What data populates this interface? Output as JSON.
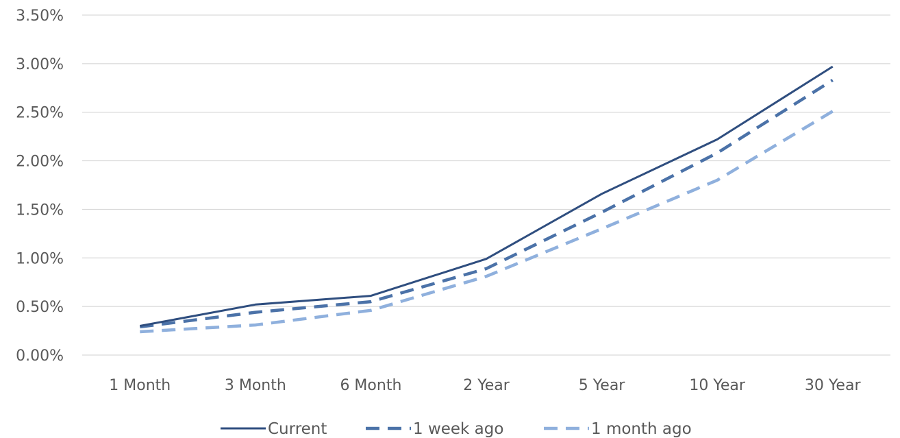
{
  "chart_data": {
    "type": "line",
    "categories": [
      "1 Month",
      "3 Month",
      "6 Month",
      "2 Year",
      "5 Year",
      "10 Year",
      "30 Year"
    ],
    "y_ticks": [
      "0.00%",
      "0.50%",
      "1.00%",
      "1.50%",
      "2.00%",
      "2.50%",
      "3.00%",
      "3.50%"
    ],
    "ylim": [
      0,
      3.5
    ],
    "y_unit": "percent",
    "grid": "horizontal",
    "legend_position": "bottom",
    "title": "",
    "xlabel": "",
    "ylabel": "",
    "series": [
      {
        "name": "Current",
        "color": "#2f4e7f",
        "style": "solid",
        "values": [
          0.3,
          0.52,
          0.61,
          0.99,
          1.66,
          2.22,
          2.97
        ]
      },
      {
        "name": "1 week ago",
        "color": "#4b72a8",
        "style": "dashed",
        "values": [
          0.29,
          0.44,
          0.55,
          0.89,
          1.47,
          2.08,
          2.83
        ]
      },
      {
        "name": "1 month ago",
        "color": "#8fb0dd",
        "style": "dashed",
        "values": [
          0.24,
          0.31,
          0.46,
          0.81,
          1.3,
          1.8,
          2.51
        ]
      }
    ]
  }
}
